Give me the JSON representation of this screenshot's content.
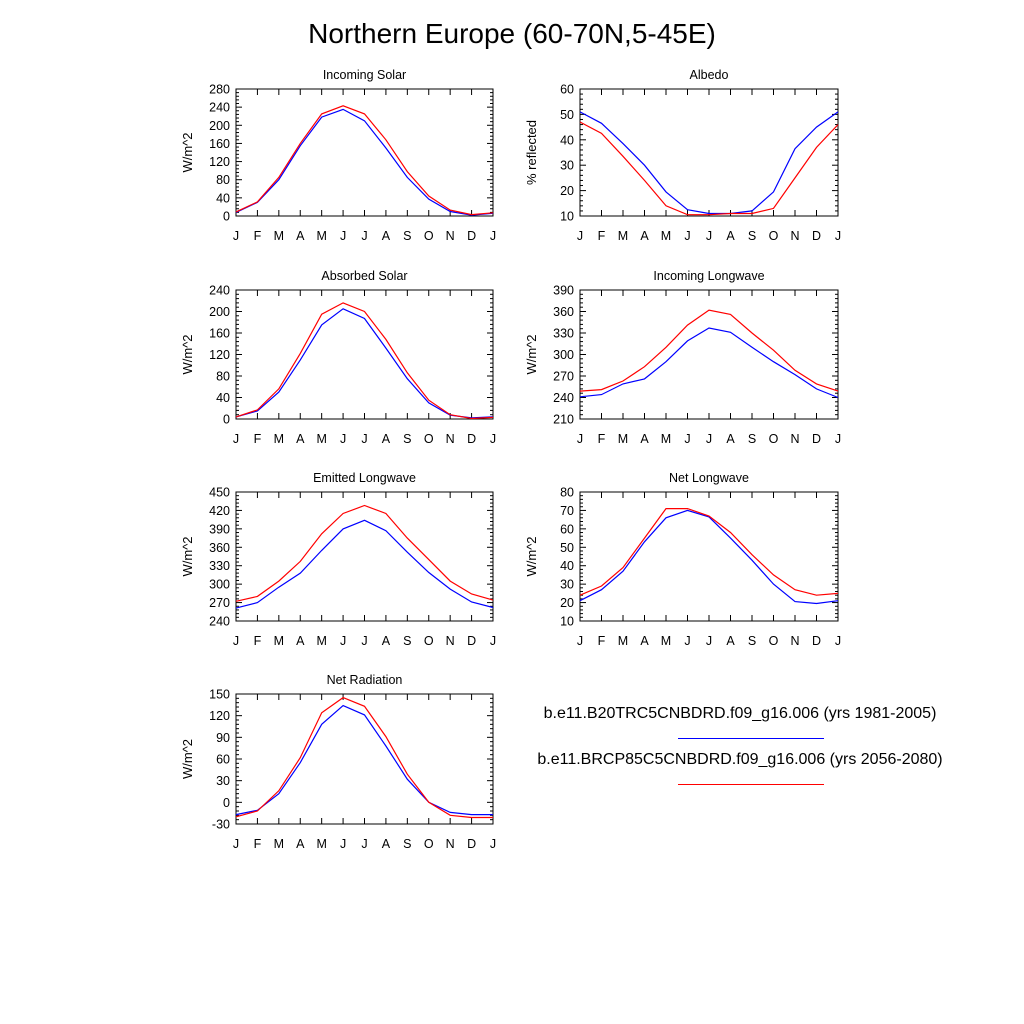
{
  "page_title": "Northern Europe (60-70N,5-45E)",
  "colors": {
    "series_0": "#0000ff",
    "series_1": "#ff0000",
    "axis": "#000000"
  },
  "legend": [
    {
      "label": "b.e11.B20TRC5CNBDRD.f09_g16.006 (yrs 1981-2005)",
      "color": "#0000ff"
    },
    {
      "label": "b.e11.BRCP85C5CNBDRD.f09_g16.006 (yrs 2056-2080)",
      "color": "#ff0000"
    }
  ],
  "chart_data": [
    {
      "type": "line",
      "title": "Incoming Solar",
      "xlabel": "",
      "ylabel": "W/m^2",
      "categories": [
        "J",
        "F",
        "M",
        "A",
        "M",
        "J",
        "J",
        "A",
        "S",
        "O",
        "N",
        "D",
        "J"
      ],
      "ylim": [
        0,
        280
      ],
      "yticks": [
        0,
        40,
        80,
        120,
        160,
        200,
        240,
        280
      ],
      "series": [
        {
          "values": [
            8,
            30,
            80,
            155,
            218,
            235,
            210,
            150,
            85,
            37,
            10,
            2,
            6
          ]
        },
        {
          "values": [
            9,
            31,
            85,
            160,
            225,
            243,
            225,
            168,
            98,
            44,
            13,
            3,
            7
          ]
        }
      ]
    },
    {
      "type": "line",
      "title": "Albedo",
      "xlabel": "",
      "ylabel": "% reflected",
      "categories": [
        "J",
        "F",
        "M",
        "A",
        "M",
        "J",
        "J",
        "A",
        "S",
        "O",
        "N",
        "D",
        "J"
      ],
      "ylim": [
        10,
        60
      ],
      "yticks": [
        10,
        20,
        30,
        40,
        50,
        60
      ],
      "series": [
        {
          "values": [
            51,
            46.5,
            38.5,
            30,
            19.5,
            12.5,
            11,
            11,
            12,
            19.5,
            36.5,
            45,
            51
          ]
        },
        {
          "values": [
            47,
            42.5,
            33.5,
            24,
            14,
            10.5,
            10.5,
            11,
            11,
            13,
            25,
            37,
            46
          ]
        }
      ]
    },
    {
      "type": "line",
      "title": "Absorbed Solar",
      "xlabel": "",
      "ylabel": "W/m^2",
      "categories": [
        "J",
        "F",
        "M",
        "A",
        "M",
        "J",
        "J",
        "A",
        "S",
        "O",
        "N",
        "D",
        "J"
      ],
      "ylim": [
        0,
        240
      ],
      "yticks": [
        0,
        40,
        80,
        120,
        160,
        200,
        240
      ],
      "series": [
        {
          "values": [
            4,
            15,
            50,
            110,
            175,
            205,
            187,
            132,
            75,
            30,
            7,
            2,
            4
          ]
        },
        {
          "values": [
            4,
            17,
            56,
            122,
            195,
            216,
            200,
            148,
            86,
            35,
            8,
            1,
            3
          ]
        }
      ]
    },
    {
      "type": "line",
      "title": "Incoming Longwave",
      "xlabel": "",
      "ylabel": "W/m^2",
      "categories": [
        "J",
        "F",
        "M",
        "A",
        "M",
        "J",
        "J",
        "A",
        "S",
        "O",
        "N",
        "D",
        "J"
      ],
      "ylim": [
        210,
        390
      ],
      "yticks": [
        210,
        240,
        270,
        300,
        330,
        360,
        390
      ],
      "series": [
        {
          "values": [
            241,
            244,
            259,
            266,
            290,
            319,
            337,
            331,
            310,
            290,
            272,
            252,
            240
          ]
        },
        {
          "values": [
            249,
            251,
            263,
            283,
            310,
            341,
            362,
            356,
            330,
            306,
            278,
            259,
            249
          ]
        }
      ]
    },
    {
      "type": "line",
      "title": "Emitted Longwave",
      "xlabel": "",
      "ylabel": "W/m^2",
      "categories": [
        "J",
        "F",
        "M",
        "A",
        "M",
        "J",
        "J",
        "A",
        "S",
        "O",
        "N",
        "D",
        "J"
      ],
      "ylim": [
        240,
        450
      ],
      "yticks": [
        240,
        270,
        300,
        330,
        360,
        390,
        420,
        450
      ],
      "series": [
        {
          "values": [
            261,
            270,
            295,
            318,
            355,
            390,
            404,
            387,
            352,
            319,
            292,
            271,
            262
          ]
        },
        {
          "values": [
            272,
            280,
            305,
            337,
            382,
            415,
            428,
            415,
            375,
            340,
            305,
            284,
            274
          ]
        }
      ]
    },
    {
      "type": "line",
      "title": "Net Longwave",
      "xlabel": "",
      "ylabel": "W/m^2",
      "categories": [
        "J",
        "F",
        "M",
        "A",
        "M",
        "J",
        "J",
        "A",
        "S",
        "O",
        "N",
        "D",
        "J"
      ],
      "ylim": [
        10,
        80
      ],
      "yticks": [
        10,
        20,
        30,
        40,
        50,
        60,
        70,
        80
      ],
      "series": [
        {
          "values": [
            21,
            27,
            37,
            53,
            66,
            70,
            66.5,
            55,
            43,
            30,
            20.5,
            19.5,
            21
          ]
        },
        {
          "values": [
            24,
            29,
            39,
            55,
            71,
            71,
            67,
            58,
            46,
            35,
            27,
            24,
            25
          ]
        }
      ]
    },
    {
      "type": "line",
      "title": "Net Radiation",
      "xlabel": "",
      "ylabel": "W/m^2",
      "categories": [
        "J",
        "F",
        "M",
        "A",
        "M",
        "J",
        "J",
        "A",
        "S",
        "O",
        "N",
        "D",
        "J"
      ],
      "ylim": [
        -30,
        150
      ],
      "yticks": [
        -30,
        0,
        30,
        60,
        90,
        120,
        150
      ],
      "series": [
        {
          "values": [
            -17,
            -11,
            12,
            55,
            108,
            134,
            121,
            78,
            32,
            0,
            -14,
            -17,
            -17
          ]
        },
        {
          "values": [
            -20,
            -12,
            16,
            62,
            124,
            145,
            133,
            91,
            39,
            0,
            -18,
            -21,
            -21
          ]
        }
      ]
    }
  ]
}
